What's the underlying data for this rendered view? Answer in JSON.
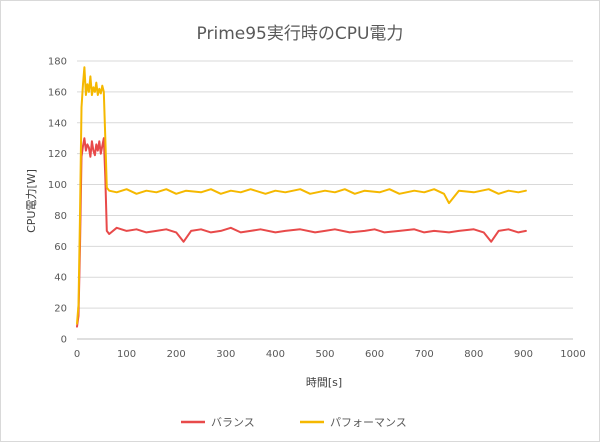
{
  "chart_data": {
    "type": "line",
    "title": "Prime95実行時のCPU電力",
    "xlabel": "時間[s]",
    "ylabel": "CPU電力[W]",
    "xlim": [
      0,
      1000
    ],
    "ylim": [
      0,
      180
    ],
    "x_ticks": [
      0,
      100,
      200,
      300,
      400,
      500,
      600,
      700,
      800,
      900,
      1000
    ],
    "y_ticks": [
      0,
      20,
      40,
      60,
      80,
      100,
      120,
      140,
      160,
      180
    ],
    "grid": "horizontal",
    "legend_position": "bottom",
    "series": [
      {
        "name": "バランス",
        "color": "#e84a4a",
        "points": [
          [
            0,
            8
          ],
          [
            3,
            15
          ],
          [
            6,
            60
          ],
          [
            9,
            118
          ],
          [
            12,
            125
          ],
          [
            15,
            130
          ],
          [
            18,
            122
          ],
          [
            21,
            126
          ],
          [
            24,
            124
          ],
          [
            27,
            118
          ],
          [
            30,
            128
          ],
          [
            33,
            122
          ],
          [
            36,
            119
          ],
          [
            39,
            126
          ],
          [
            42,
            122
          ],
          [
            45,
            128
          ],
          [
            48,
            120
          ],
          [
            51,
            125
          ],
          [
            54,
            130
          ],
          [
            57,
            105
          ],
          [
            60,
            70
          ],
          [
            65,
            68
          ],
          [
            80,
            72
          ],
          [
            100,
            70
          ],
          [
            120,
            71
          ],
          [
            140,
            69
          ],
          [
            160,
            70
          ],
          [
            180,
            71
          ],
          [
            200,
            69
          ],
          [
            215,
            63
          ],
          [
            230,
            70
          ],
          [
            250,
            71
          ],
          [
            270,
            69
          ],
          [
            290,
            70
          ],
          [
            310,
            72
          ],
          [
            330,
            69
          ],
          [
            350,
            70
          ],
          [
            370,
            71
          ],
          [
            400,
            69
          ],
          [
            420,
            70
          ],
          [
            450,
            71
          ],
          [
            480,
            69
          ],
          [
            500,
            70
          ],
          [
            520,
            71
          ],
          [
            550,
            69
          ],
          [
            580,
            70
          ],
          [
            600,
            71
          ],
          [
            620,
            69
          ],
          [
            650,
            70
          ],
          [
            680,
            71
          ],
          [
            700,
            69
          ],
          [
            720,
            70
          ],
          [
            750,
            69
          ],
          [
            770,
            70
          ],
          [
            800,
            71
          ],
          [
            820,
            69
          ],
          [
            835,
            63
          ],
          [
            850,
            70
          ],
          [
            870,
            71
          ],
          [
            890,
            69
          ],
          [
            905,
            70
          ]
        ]
      },
      {
        "name": "パフォーマンス",
        "color": "#f5b800",
        "points": [
          [
            0,
            10
          ],
          [
            3,
            22
          ],
          [
            6,
            80
          ],
          [
            9,
            150
          ],
          [
            12,
            165
          ],
          [
            15,
            176
          ],
          [
            18,
            158
          ],
          [
            21,
            165
          ],
          [
            24,
            160
          ],
          [
            27,
            170
          ],
          [
            30,
            158
          ],
          [
            33,
            163
          ],
          [
            36,
            160
          ],
          [
            39,
            166
          ],
          [
            42,
            158
          ],
          [
            45,
            162
          ],
          [
            48,
            159
          ],
          [
            51,
            164
          ],
          [
            54,
            160
          ],
          [
            57,
            130
          ],
          [
            60,
            98
          ],
          [
            65,
            96
          ],
          [
            80,
            95
          ],
          [
            100,
            97
          ],
          [
            120,
            94
          ],
          [
            140,
            96
          ],
          [
            160,
            95
          ],
          [
            180,
            97
          ],
          [
            200,
            94
          ],
          [
            220,
            96
          ],
          [
            250,
            95
          ],
          [
            270,
            97
          ],
          [
            290,
            94
          ],
          [
            310,
            96
          ],
          [
            330,
            95
          ],
          [
            350,
            97
          ],
          [
            380,
            94
          ],
          [
            400,
            96
          ],
          [
            420,
            95
          ],
          [
            450,
            97
          ],
          [
            470,
            94
          ],
          [
            500,
            96
          ],
          [
            520,
            95
          ],
          [
            540,
            97
          ],
          [
            560,
            94
          ],
          [
            580,
            96
          ],
          [
            610,
            95
          ],
          [
            630,
            97
          ],
          [
            650,
            94
          ],
          [
            680,
            96
          ],
          [
            700,
            95
          ],
          [
            720,
            97
          ],
          [
            740,
            94
          ],
          [
            750,
            88
          ],
          [
            770,
            96
          ],
          [
            800,
            95
          ],
          [
            830,
            97
          ],
          [
            850,
            94
          ],
          [
            870,
            96
          ],
          [
            890,
            95
          ],
          [
            905,
            96
          ]
        ]
      }
    ]
  }
}
